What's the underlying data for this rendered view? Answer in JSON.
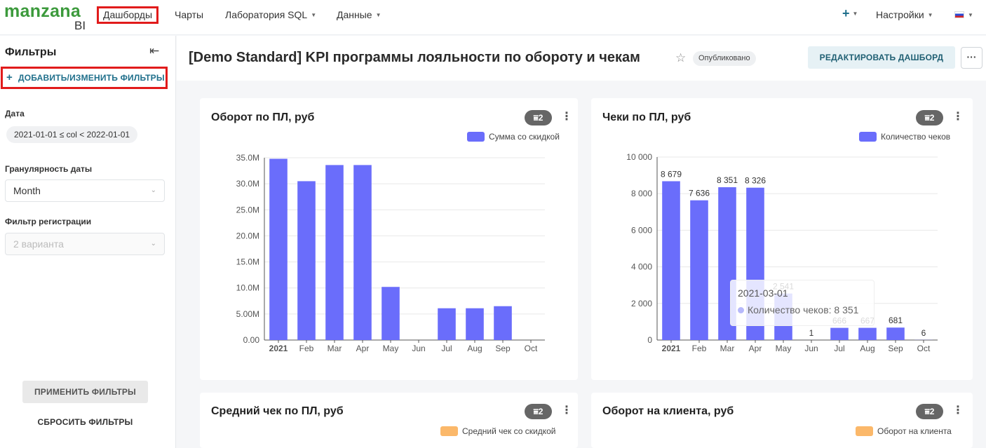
{
  "nav": {
    "logo_text": "manzana",
    "logo_bi": "BI",
    "dashboards": "Дашборды",
    "charts": "Чарты",
    "sql_lab": "Лаборатория SQL",
    "data": "Данные",
    "plus": "+",
    "settings": "Настройки"
  },
  "sidebar": {
    "title": "Фильтры",
    "add_filters": "ДОБАВИТЬ/ИЗМЕНИТЬ ФИЛЬТРЫ",
    "date_label": "Дата",
    "date_value": "2021-01-01 ≤ col < 2022-01-01",
    "granularity_label": "Гранулярность даты",
    "granularity_value": "Month",
    "registration_label": "Фильтр регистрации",
    "registration_placeholder": "2 варианта",
    "apply": "ПРИМЕНИТЬ ФИЛЬТРЫ",
    "reset": "СБРОСИТЬ ФИЛЬТРЫ"
  },
  "header": {
    "title": "[Demo Standard] KPI программы лояльности по обороту и чекам",
    "status": "Опубликовано",
    "edit": "РЕДАКТИРОВАТЬ ДАШБОРД",
    "more": "···"
  },
  "colors": {
    "bar": "#6a6dfb",
    "accent": "#1f6f8b",
    "orange": "#fbb86a"
  },
  "cards": {
    "turnover": {
      "title": "Оборот по ПЛ, руб",
      "badge": "2",
      "legend": "Сумма со скидкой"
    },
    "checks": {
      "title": "Чеки по ПЛ, руб",
      "badge": "2",
      "legend": "Количество чеков"
    },
    "avg_check": {
      "title": "Средний чек по ПЛ, руб",
      "badge": "2",
      "legend": "Средний чек со скидкой"
    },
    "per_client": {
      "title": "Оборот на клиента, руб",
      "badge": "2",
      "legend": "Оборот на клиента"
    }
  },
  "tooltip": {
    "title": "2021-03-01",
    "row": "Количество чеков: 8 351"
  },
  "chart_data": [
    {
      "type": "bar",
      "title": "Оборот по ПЛ, руб",
      "categories": [
        "2021",
        "Feb",
        "Mar",
        "Apr",
        "May",
        "Jun",
        "Jul",
        "Aug",
        "Sep",
        "Oct"
      ],
      "series": [
        {
          "name": "Сумма со скидкой",
          "values": [
            34800000,
            30500000,
            33600000,
            33600000,
            10200000,
            0,
            6100000,
            6100000,
            6500000,
            0
          ]
        }
      ],
      "yticks": [
        "0.00",
        "5.00M",
        "10.0M",
        "15.0M",
        "20.0M",
        "25.0M",
        "30.0M",
        "35.0M"
      ],
      "ylim": [
        0,
        35000000
      ],
      "grid": true,
      "legend": "top-right"
    },
    {
      "type": "bar",
      "title": "Чеки по ПЛ, руб",
      "categories": [
        "2021",
        "Feb",
        "Mar",
        "Apr",
        "May",
        "Jun",
        "Jul",
        "Aug",
        "Sep",
        "Oct"
      ],
      "series": [
        {
          "name": "Количество чеков",
          "values": [
            8679,
            7636,
            8351,
            8326,
            2541,
            1,
            666,
            667,
            681,
            6
          ]
        }
      ],
      "data_labels": [
        "8 679",
        "7 636",
        "8 351",
        "8 326",
        "2 541",
        "1",
        "666",
        "667",
        "681",
        "6"
      ],
      "yticks": [
        "0",
        "2 000",
        "4 000",
        "6 000",
        "8 000",
        "10 000"
      ],
      "ylim": [
        0,
        10000
      ],
      "grid": true,
      "legend": "top-right"
    }
  ]
}
